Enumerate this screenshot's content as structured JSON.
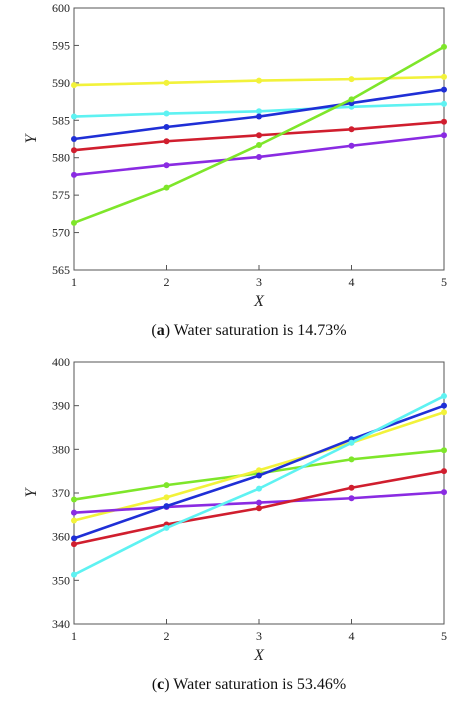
{
  "colors": {
    "yellow": "#f2f23a",
    "cyan": "#5ef2f2",
    "blue": "#1f2fd6",
    "red": "#d01e2e",
    "purple": "#8a2be2",
    "green": "#7ee62a"
  },
  "chart_data": [
    {
      "type": "line",
      "caption_label": "a",
      "caption_text": "Water saturation is 14.73%",
      "xlabel": "X",
      "ylabel": "Y",
      "x": [
        1,
        2,
        3,
        4,
        5
      ],
      "xlim": [
        1,
        5
      ],
      "ylim": [
        565,
        600
      ],
      "yticks": [
        565,
        570,
        575,
        580,
        585,
        590,
        595,
        600
      ],
      "xticks": [
        1,
        2,
        3,
        4,
        5
      ],
      "grid": false,
      "series": [
        {
          "color": "yellow",
          "values": [
            589.7,
            590.0,
            590.3,
            590.5,
            590.8
          ]
        },
        {
          "color": "cyan",
          "values": [
            585.5,
            585.9,
            586.2,
            586.8,
            587.2
          ]
        },
        {
          "color": "blue",
          "values": [
            582.5,
            584.1,
            585.5,
            587.3,
            589.1
          ]
        },
        {
          "color": "red",
          "values": [
            581.0,
            582.2,
            583.0,
            583.8,
            584.8
          ]
        },
        {
          "color": "purple",
          "values": [
            577.7,
            579.0,
            580.1,
            581.6,
            583.0
          ]
        },
        {
          "color": "green",
          "values": [
            571.3,
            576.0,
            581.7,
            587.8,
            594.8
          ]
        }
      ]
    },
    {
      "type": "line",
      "caption_label": "c",
      "caption_text": "Water saturation is 53.46%",
      "xlabel": "X",
      "ylabel": "Y",
      "x": [
        1,
        2,
        3,
        4,
        5
      ],
      "xlim": [
        1,
        5
      ],
      "ylim": [
        340,
        400
      ],
      "yticks": [
        340,
        350,
        360,
        370,
        380,
        390,
        400
      ],
      "xticks": [
        1,
        2,
        3,
        4,
        5
      ],
      "grid": false,
      "series": [
        {
          "color": "green",
          "values": [
            368.5,
            371.8,
            374.5,
            377.7,
            379.8
          ]
        },
        {
          "color": "yellow",
          "values": [
            363.7,
            369.0,
            375.2,
            381.5,
            388.5
          ]
        },
        {
          "color": "purple",
          "values": [
            365.5,
            366.8,
            367.8,
            368.8,
            370.2
          ]
        },
        {
          "color": "blue",
          "values": [
            359.6,
            367.0,
            374.0,
            382.3,
            390.0
          ]
        },
        {
          "color": "red",
          "values": [
            358.3,
            362.8,
            366.5,
            371.2,
            375.0
          ]
        },
        {
          "color": "cyan",
          "values": [
            351.3,
            362.0,
            371.0,
            381.5,
            392.2
          ]
        }
      ]
    }
  ]
}
